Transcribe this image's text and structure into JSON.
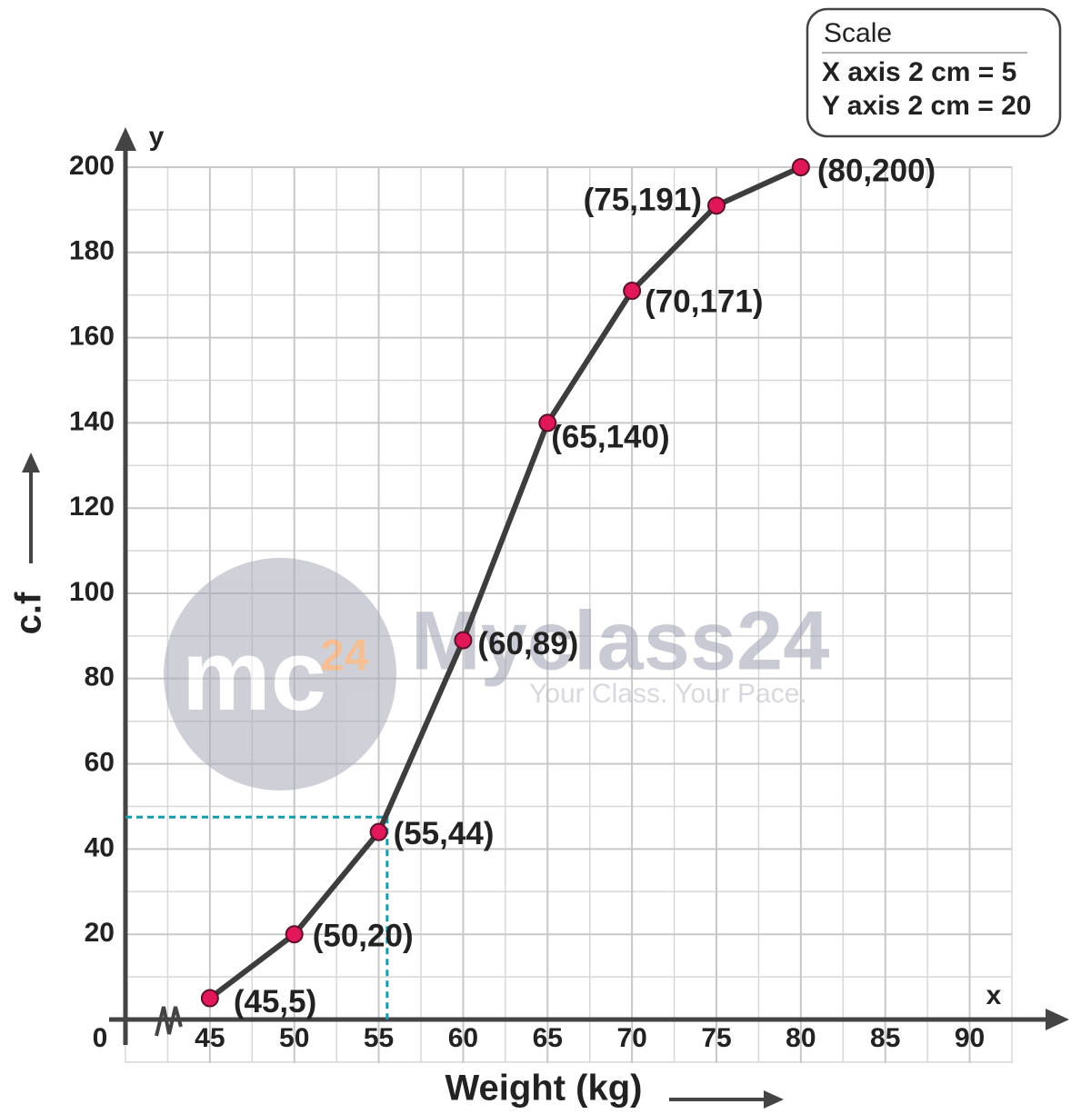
{
  "chart_data": {
    "type": "line",
    "x_label": "Weight (kg)",
    "y_label": "c.f",
    "x_axis_name": "x",
    "y_axis_name": "y",
    "origin_label": "0",
    "x": [
      45,
      50,
      55,
      60,
      65,
      70,
      75,
      80
    ],
    "values": [
      5,
      20,
      44,
      89,
      140,
      171,
      191,
      200
    ],
    "value_labels": [
      "(45,5)",
      "(50,20)",
      "(55,44)",
      "(60,89)",
      "(65,140)",
      "(70,171)",
      "(75,191)",
      "(80,200)"
    ],
    "color": "#3d3d3d",
    "marker_color": "#e0185a",
    "xlim": [
      40,
      92.5
    ],
    "ylim": [
      0,
      200
    ],
    "xticks": [
      45,
      50,
      55,
      60,
      65,
      70,
      75,
      80,
      85,
      90
    ],
    "yticks": [
      20,
      40,
      60,
      80,
      100,
      120,
      140,
      160,
      180,
      200
    ],
    "grid": true,
    "guide": {
      "x": 55.5,
      "y": 47.5,
      "color": "#1a9aa8"
    },
    "scale_box": {
      "title": "Scale",
      "lines": [
        "X axis 2 cm = 5",
        "Y axis 2 cm = 20"
      ]
    },
    "watermark": {
      "logo": "mc",
      "logo_sup": "24",
      "brand": "Myclass24",
      "tagline": "Your Class. Your Pace."
    }
  }
}
